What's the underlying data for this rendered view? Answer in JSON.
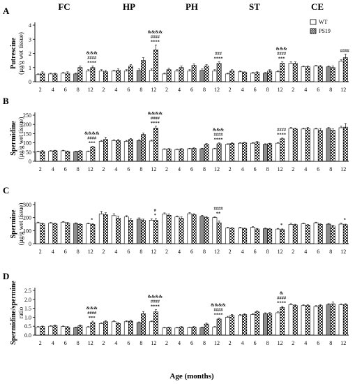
{
  "figure": {
    "regions": [
      "FC",
      "HP",
      "PH",
      "ST",
      "CE"
    ],
    "ages": [
      "2",
      "4",
      "6",
      "8",
      "12"
    ],
    "xlabel": "Age (months)",
    "legend": [
      {
        "label": "WT",
        "pattern": "white"
      },
      {
        "label": "PS19",
        "pattern": "checker"
      }
    ],
    "colors": {
      "wt_fill": "#ffffff",
      "wt_dark_fill": "#8c8c8c",
      "ps19_pattern_fg": "#1a1a1a",
      "axis": "#000000"
    }
  },
  "chart_data": [
    {
      "type": "bar",
      "panel_letter": "A",
      "title": "",
      "ylabel_main": "Putrescine",
      "ylabel_unit": "(µg/g wet tissue)",
      "ylim": [
        0,
        4
      ],
      "yticks": [
        0,
        1,
        2,
        3,
        4
      ],
      "ytick_labels": [
        "0",
        "1",
        "2",
        "3",
        "4"
      ],
      "regions": [
        "FC",
        "HP",
        "PH",
        "ST",
        "CE"
      ],
      "categories": [
        "2",
        "4",
        "6",
        "8",
        "12"
      ],
      "series": [
        {
          "name": "WT",
          "values": [
            [
              0.5,
              0.55,
              0.6,
              0.55,
              0.75
            ],
            [
              0.75,
              0.75,
              0.75,
              0.8,
              0.8
            ],
            [
              0.55,
              0.75,
              0.75,
              0.8,
              0.75
            ],
            [
              0.55,
              0.7,
              0.6,
              0.6,
              0.7
            ],
            [
              1.3,
              1.05,
              1.1,
              1.05,
              1.45
            ]
          ]
        },
        {
          "name": "PS19",
          "values": [
            [
              0.6,
              0.55,
              0.6,
              1.0,
              1.0
            ],
            [
              0.7,
              0.8,
              1.1,
              1.5,
              2.25
            ],
            [
              0.85,
              1.0,
              1.15,
              1.1,
              1.3
            ],
            [
              0.75,
              0.65,
              0.65,
              0.75,
              1.3
            ],
            [
              1.3,
              1.05,
              1.05,
              1.0,
              1.7
            ]
          ]
        }
      ],
      "errors": [
        [
          [
            0.05,
            0.05,
            0.05,
            0.05,
            0.1
          ],
          [
            0.1,
            0.05,
            0.1,
            0.1,
            0.1
          ],
          [
            0.05,
            0.1,
            0.1,
            0.1,
            0.1
          ],
          [
            0.05,
            0.05,
            0.05,
            0.05,
            0.05
          ],
          [
            0.1,
            0.05,
            0.05,
            0.05,
            0.1
          ]
        ],
        [
          [
            0.1,
            0.05,
            0.1,
            0.1,
            0.1
          ],
          [
            0.1,
            0.1,
            0.1,
            0.2,
            0.35
          ],
          [
            0.1,
            0.1,
            0.1,
            0.1,
            0.1
          ],
          [
            0.1,
            0.05,
            0.05,
            0.1,
            0.1
          ],
          [
            0.1,
            0.05,
            0.1,
            0.1,
            0.25
          ]
        ]
      ],
      "annotations": [
        {
          "region": "FC",
          "age": "12",
          "lines": [
            "&&&",
            "####",
            "****"
          ]
        },
        {
          "region": "HP",
          "age": "12",
          "lines": [
            "&&&&",
            "####",
            "****"
          ]
        },
        {
          "region": "PH",
          "age": "12",
          "lines": [
            "###",
            "****"
          ]
        },
        {
          "region": "ST",
          "age": "12",
          "lines": [
            "&&&",
            "####",
            "***"
          ]
        },
        {
          "region": "CE",
          "age": "12",
          "lines": [
            "####"
          ]
        }
      ]
    },
    {
      "type": "bar",
      "panel_letter": "B",
      "title": "",
      "ylabel_main": "Spermidine",
      "ylabel_unit": "(µg/g wet tissue)",
      "ylim": [
        0,
        250
      ],
      "yticks": [
        0,
        50,
        100,
        150,
        200,
        250
      ],
      "ytick_labels": [
        "0",
        "50",
        "100",
        "150",
        "200",
        "250"
      ],
      "regions": [
        "FC",
        "HP",
        "PH",
        "ST",
        "CE"
      ],
      "categories": [
        "2",
        "4",
        "6",
        "8",
        "12"
      ],
      "series": [
        {
          "name": "WT",
          "values": [
            [
              52,
              55,
              57,
              52,
              53
            ],
            [
              108,
              112,
              108,
              112,
              110
            ],
            [
              65,
              64,
              68,
              68,
              68
            ],
            [
              92,
              98,
              98,
              92,
              98
            ],
            [
              178,
              175,
              175,
              178,
              182
            ]
          ]
        },
        {
          "name": "PS19",
          "values": [
            [
              55,
              57,
              53,
              55,
              77
            ],
            [
              118,
              112,
              118,
              145,
              180
            ],
            [
              66,
              66,
              70,
              92,
              95
            ],
            [
              97,
              100,
              104,
              95,
              122
            ],
            [
              175,
              178,
              168,
              168,
              185
            ]
          ]
        }
      ],
      "errors": [
        [
          [
            3,
            3,
            3,
            3,
            3
          ],
          [
            5,
            5,
            5,
            5,
            5
          ],
          [
            3,
            3,
            3,
            3,
            3
          ],
          [
            3,
            3,
            3,
            3,
            3
          ],
          [
            5,
            5,
            5,
            5,
            8
          ]
        ],
        [
          [
            3,
            3,
            3,
            3,
            4
          ],
          [
            12,
            6,
            6,
            8,
            10
          ],
          [
            3,
            3,
            3,
            4,
            5
          ],
          [
            3,
            3,
            3,
            3,
            4
          ],
          [
            5,
            5,
            10,
            8,
            20
          ]
        ]
      ],
      "annotations": [
        {
          "region": "FC",
          "age": "12",
          "lines": [
            "&&&&",
            "####",
            "***"
          ]
        },
        {
          "region": "HP",
          "age": "12",
          "lines": [
            "&&&&",
            "####",
            "****"
          ]
        },
        {
          "region": "PH",
          "age": "12",
          "lines": [
            "&&&",
            "####",
            "****"
          ]
        },
        {
          "region": "ST",
          "age": "12",
          "lines": [
            "####",
            "****"
          ]
        }
      ]
    },
    {
      "type": "bar",
      "panel_letter": "C",
      "title": "",
      "ylabel_main": "Spermine",
      "ylabel_unit": "(µg/g wet tissue)",
      "ylim": [
        0,
        300
      ],
      "yticks": [
        0,
        100,
        200,
        300
      ],
      "ytick_labels": [
        "0",
        "100",
        "200",
        "300"
      ],
      "regions": [
        "FC",
        "HP",
        "PH",
        "ST",
        "CE"
      ],
      "categories": [
        "2",
        "4",
        "6",
        "8",
        "12"
      ],
      "series": [
        {
          "name": "WT",
          "values": [
            [
              160,
              158,
              165,
              155,
              152
            ],
            [
              228,
              215,
              205,
              188,
              180
            ],
            [
              228,
              205,
              230,
              210,
              200
            ],
            [
              120,
              120,
              125,
              115,
              112
            ],
            [
              148,
              152,
              160,
              150,
              150
            ]
          ]
        },
        {
          "name": "PS19",
          "values": [
            [
              152,
              152,
              158,
              148,
              148
            ],
            [
              222,
              195,
              180,
              178,
              178
            ],
            [
              218,
              195,
              222,
              200,
              160
            ],
            [
              118,
              115,
              112,
              112,
              108
            ],
            [
              145,
              142,
              148,
              135,
              145
            ]
          ]
        }
      ],
      "errors": [
        [
          [
            5,
            5,
            5,
            5,
            5
          ],
          [
            20,
            15,
            10,
            10,
            10
          ],
          [
            8,
            8,
            8,
            8,
            5
          ],
          [
            5,
            5,
            5,
            5,
            5
          ],
          [
            8,
            5,
            5,
            5,
            8
          ]
        ],
        [
          [
            5,
            5,
            5,
            5,
            5
          ],
          [
            15,
            15,
            12,
            10,
            15
          ],
          [
            10,
            10,
            8,
            8,
            15
          ],
          [
            5,
            5,
            5,
            5,
            5
          ],
          [
            5,
            5,
            5,
            5,
            5
          ]
        ]
      ],
      "annotations": [
        {
          "region": "FC",
          "age": "12",
          "lines": [
            "*"
          ]
        },
        {
          "region": "HP",
          "age": "12",
          "lines": [
            "#",
            "*"
          ]
        },
        {
          "region": "PH",
          "age": "12",
          "lines": [
            "####",
            "**"
          ]
        },
        {
          "region": "ST",
          "age": "12",
          "lines": [
            "*"
          ]
        },
        {
          "region": "CE",
          "age": "12",
          "lines": [
            "*"
          ]
        }
      ]
    },
    {
      "type": "bar",
      "panel_letter": "D",
      "title": "",
      "ylabel_main": "Spermidine/spermine",
      "ylabel_unit": "ratio",
      "ylim": [
        0,
        2.5
      ],
      "yticks": [
        0,
        0.5,
        1,
        1.5,
        2,
        2.5
      ],
      "ytick_labels": [
        "0.0",
        "0.5",
        "1.0",
        "1.5",
        "2.0",
        "2.5"
      ],
      "regions": [
        "FC",
        "HP",
        "PH",
        "ST",
        "CE"
      ],
      "categories": [
        "2",
        "4",
        "6",
        "8",
        "12"
      ],
      "series": [
        {
          "name": "WT",
          "values": [
            [
              0.45,
              0.5,
              0.48,
              0.42,
              0.45
            ],
            [
              0.65,
              0.75,
              0.75,
              0.7,
              0.75
            ],
            [
              0.4,
              0.4,
              0.42,
              0.42,
              0.45
            ],
            [
              1.0,
              1.1,
              1.15,
              1.2,
              1.25
            ],
            [
              1.7,
              1.65,
              1.6,
              1.7,
              1.7
            ]
          ]
        },
        {
          "name": "PS19",
          "values": [
            [
              0.48,
              0.52,
              0.45,
              0.52,
              0.7
            ],
            [
              0.75,
              0.65,
              0.78,
              1.2,
              1.3
            ],
            [
              0.42,
              0.45,
              0.45,
              0.62,
              0.9
            ],
            [
              1.1,
              1.15,
              1.3,
              1.2,
              1.55
            ],
            [
              1.65,
              1.65,
              1.65,
              1.75,
              1.7
            ]
          ]
        }
      ],
      "errors": [
        [
          [
            0.03,
            0.03,
            0.03,
            0.03,
            0.03
          ],
          [
            0.04,
            0.05,
            0.05,
            0.04,
            0.04
          ],
          [
            0.03,
            0.03,
            0.03,
            0.03,
            0.03
          ],
          [
            0.05,
            0.05,
            0.05,
            0.05,
            0.05
          ],
          [
            0.06,
            0.05,
            0.05,
            0.06,
            0.05
          ]
        ],
        [
          [
            0.03,
            0.04,
            0.03,
            0.05,
            0.08
          ],
          [
            0.06,
            0.05,
            0.05,
            0.12,
            0.12
          ],
          [
            0.03,
            0.03,
            0.03,
            0.05,
            0.05
          ],
          [
            0.06,
            0.05,
            0.06,
            0.06,
            0.07
          ],
          [
            0.05,
            0.06,
            0.06,
            0.1,
            0.06
          ]
        ]
      ],
      "annotations": [
        {
          "region": "FC",
          "age": "12",
          "lines": [
            "&&&",
            "####",
            "***"
          ]
        },
        {
          "region": "HP",
          "age": "12",
          "lines": [
            "&&&&",
            "####",
            "****"
          ]
        },
        {
          "region": "PH",
          "age": "12",
          "lines": [
            "&&&&",
            "####",
            "****"
          ]
        },
        {
          "region": "ST",
          "age": "12",
          "lines": [
            "&",
            "####",
            "****"
          ]
        }
      ]
    }
  ]
}
